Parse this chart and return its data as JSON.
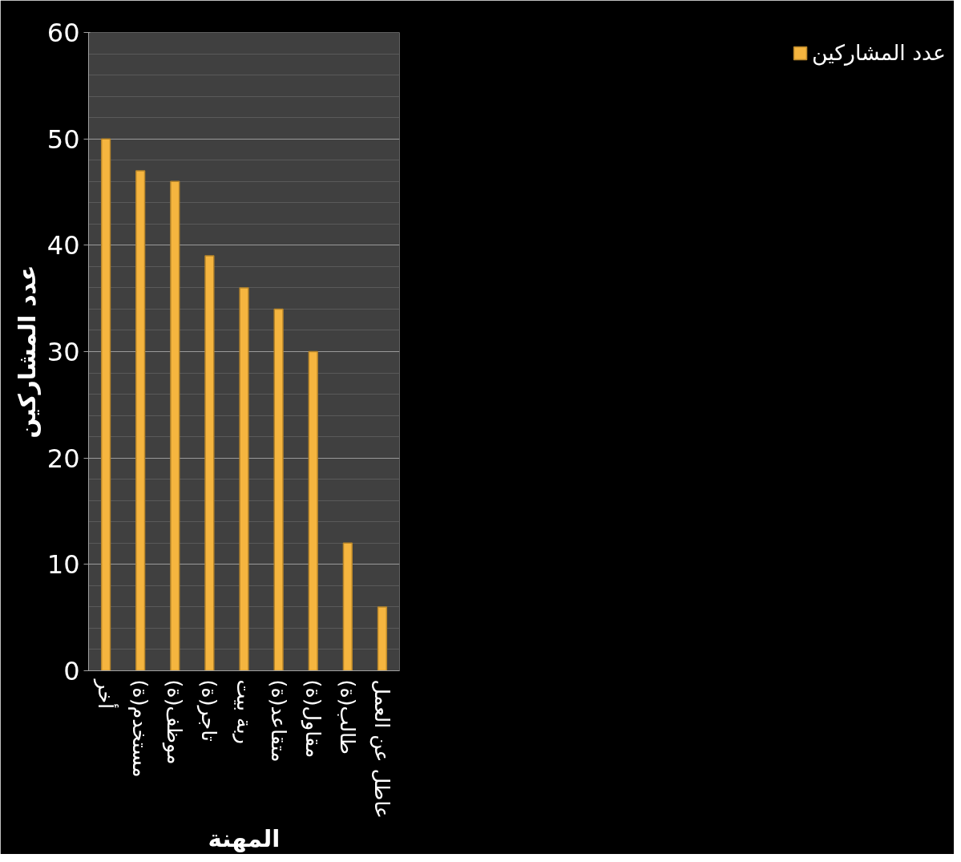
{
  "chart_data": {
    "type": "bar",
    "xlabel": "المهنة",
    "ylabel": "عدد المشاركين",
    "categories": [
      "أخر",
      "مستخدم(ة)",
      "موظف(ة)",
      "تاجر(ة)",
      "ربة بيت",
      "متقاعد(ة)",
      "مقاول(ة)",
      "طالب(ة)",
      "عاطل عن العمل"
    ],
    "series": [
      {
        "name": "عدد المشاركين",
        "color": "#f5b53f",
        "values": [
          50,
          47,
          46,
          39,
          36,
          34,
          30,
          12,
          6
        ]
      }
    ],
    "ylim": [
      0,
      60
    ],
    "yticks": [
      0,
      10,
      20,
      30,
      40,
      50,
      60
    ],
    "grid": "y",
    "legend": "right"
  }
}
